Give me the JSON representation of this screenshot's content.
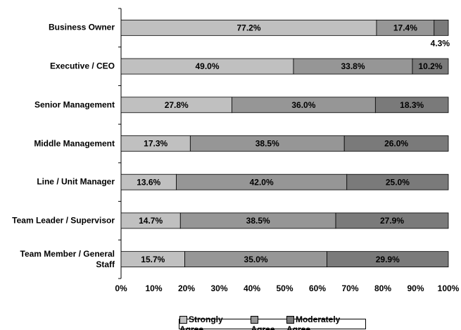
{
  "chart_data": {
    "type": "bar",
    "orientation": "horizontal",
    "stack": "percent",
    "categories": [
      "Business Owner",
      "Executive / CEO",
      "Senior Management",
      "Middle Management",
      "Line / Unit Manager",
      "Team Leader / Supervisor",
      "Team Member / General Staff"
    ],
    "series": [
      {
        "name": "Strongly Agree",
        "color": "#c0c0c0",
        "values": [
          77.2,
          49.0,
          27.8,
          17.3,
          13.6,
          14.7,
          15.7
        ],
        "value_labels": [
          "77.2%",
          "49.0%",
          "27.8%",
          "17.3%",
          "13.6%",
          "14.7%",
          "15.7%"
        ]
      },
      {
        "name": "Agree",
        "color": "#969696",
        "values": [
          17.4,
          33.8,
          36.0,
          38.5,
          42.0,
          38.5,
          35.0
        ],
        "value_labels": [
          "17.4%",
          "33.8%",
          "36.0%",
          "38.5%",
          "42.0%",
          "38.5%",
          "35.0%"
        ]
      },
      {
        "name": "Moderately Agree",
        "color": "#7a7a7a",
        "values": [
          4.3,
          10.2,
          18.3,
          26.0,
          25.0,
          27.9,
          29.9
        ],
        "value_labels": [
          "4.3%",
          "10.2%",
          "18.3%",
          "26.0%",
          "25.0%",
          "27.9%",
          "29.9%"
        ]
      }
    ],
    "xlim": [
      0,
      100
    ],
    "xticks": [
      {
        "value": 0,
        "label": "0%"
      },
      {
        "value": 10,
        "label": "10%"
      },
      {
        "value": 20,
        "label": "20%"
      },
      {
        "value": 30,
        "label": "30%"
      },
      {
        "value": 40,
        "label": "40%"
      },
      {
        "value": 50,
        "label": "50%"
      },
      {
        "value": 60,
        "label": "60%"
      },
      {
        "value": 70,
        "label": "70%"
      },
      {
        "value": 80,
        "label": "80%"
      },
      {
        "value": 90,
        "label": "90%"
      },
      {
        "value": 100,
        "label": "100%"
      }
    ],
    "legend": "bottom"
  }
}
